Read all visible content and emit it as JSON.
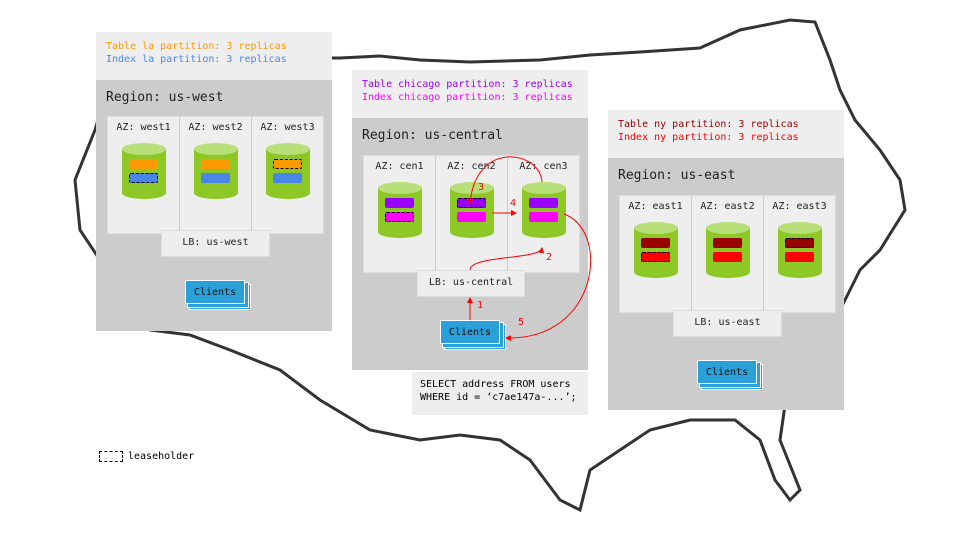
{
  "colors": {
    "table_west": "#ff9900",
    "index_west": "#4a86e8",
    "table_central": "#9900ff",
    "index_central": "#ff00ff",
    "table_east": "#990000",
    "index_east": "#ff0000",
    "node": "#8dc826",
    "clients": "#2b9fd9",
    "arrow": "#ff0000"
  },
  "west": {
    "table_text": "Table la partition: 3 replicas",
    "index_text": "Index la partition: 3 replicas",
    "region": "Region: us-west",
    "azs": [
      "AZ: west1",
      "AZ: west2",
      "AZ: west3"
    ],
    "lb": "LB: us-west",
    "clients": "Clients"
  },
  "central": {
    "table_text": "Table chicago partition: 3 replicas",
    "index_text": "Index chicago partition: 3 replicas",
    "region": "Region: us-central",
    "azs": [
      "AZ: cen1",
      "AZ: cen2",
      "AZ: cen3"
    ],
    "lb": "LB: us-central",
    "clients": "Clients",
    "steps": [
      "1",
      "2",
      "3",
      "4",
      "5"
    ]
  },
  "east": {
    "table_text": "Table ny partition: 3 replicas",
    "index_text": "Index ny partition: 3 replicas",
    "region": "Region: us-east",
    "azs": [
      "AZ: east1",
      "AZ: east2",
      "AZ: east3"
    ],
    "lb": "LB: us-east",
    "clients": "Clients"
  },
  "query": {
    "line1": "SELECT address FROM users",
    "line2": "WHERE id = ‘c7ae147a-...’;"
  },
  "legend": {
    "label": "leaseholder"
  }
}
